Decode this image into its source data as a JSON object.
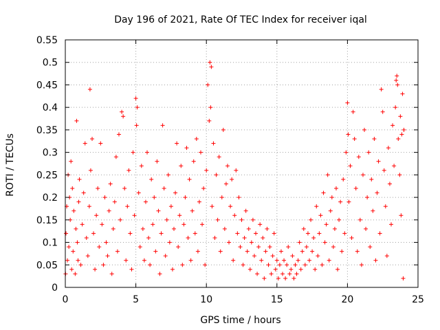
{
  "chart_data": {
    "type": "scatter",
    "title": "Day 196 of 2021, Rate Of TEC Index for receiver iqal",
    "xlabel": "GPS time / hours",
    "ylabel": "ROTI / TECUs",
    "xlim": [
      0,
      25
    ],
    "ylim": [
      0,
      0.55
    ],
    "grid": true,
    "marker": "plus",
    "color": "#ff0000",
    "x_ticks": [
      {
        "value": 0,
        "label": "0"
      },
      {
        "value": 5,
        "label": "5"
      },
      {
        "value": 10,
        "label": "10"
      },
      {
        "value": 15,
        "label": "15"
      },
      {
        "value": 20,
        "label": "20"
      },
      {
        "value": 25,
        "label": "25"
      }
    ],
    "y_ticks": [
      {
        "value": 0,
        "label": "0"
      },
      {
        "value": 0.05,
        "label": "0.05"
      },
      {
        "value": 0.1,
        "label": "0.1"
      },
      {
        "value": 0.15,
        "label": "0.15"
      },
      {
        "value": 0.2,
        "label": "0.2"
      },
      {
        "value": 0.25,
        "label": "0.25"
      },
      {
        "value": 0.3,
        "label": "0.3"
      },
      {
        "value": 0.35,
        "label": "0.35"
      },
      {
        "value": 0.4,
        "label": "0.4"
      },
      {
        "value": 0.45,
        "label": "0.45"
      },
      {
        "value": 0.5,
        "label": "0.5"
      },
      {
        "value": 0.55,
        "label": "0.55"
      }
    ],
    "series": [
      {
        "values": [
          [
            0.02,
            0.03
          ],
          [
            0.05,
            0.12
          ],
          [
            0.1,
            0.18
          ],
          [
            0.15,
            0.06
          ],
          [
            0.2,
            0.25
          ],
          [
            0.25,
            0.09
          ],
          [
            0.3,
            0.2
          ],
          [
            0.35,
            0.15
          ],
          [
            0.4,
            0.28
          ],
          [
            0.45,
            0.04
          ],
          [
            0.5,
            0.22
          ],
          [
            0.55,
            0.08
          ],
          [
            0.6,
            0.17
          ],
          [
            0.7,
            0.03
          ],
          [
            0.75,
            0.13
          ],
          [
            0.8,
            0.37
          ],
          [
            0.85,
            0.1
          ],
          [
            0.9,
            0.06
          ],
          [
            0.95,
            0.19
          ],
          [
            1.0,
            0.24
          ],
          [
            1.1,
            0.05
          ],
          [
            1.2,
            0.14
          ],
          [
            1.3,
            0.21
          ],
          [
            1.4,
            0.32
          ],
          [
            1.5,
            0.11
          ],
          [
            1.6,
            0.07
          ],
          [
            1.7,
            0.18
          ],
          [
            1.75,
            0.44
          ],
          [
            1.8,
            0.26
          ],
          [
            1.9,
            0.33
          ],
          [
            2.0,
            0.12
          ],
          [
            2.1,
            0.04
          ],
          [
            2.2,
            0.16
          ],
          [
            2.3,
            0.22
          ],
          [
            2.4,
            0.09
          ],
          [
            2.5,
            0.32
          ],
          [
            2.6,
            0.14
          ],
          [
            2.7,
            0.05
          ],
          [
            2.8,
            0.2
          ],
          [
            2.9,
            0.1
          ],
          [
            3.0,
            0.07
          ],
          [
            3.1,
            0.17
          ],
          [
            3.2,
            0.23
          ],
          [
            3.3,
            0.03
          ],
          [
            3.4,
            0.13
          ],
          [
            3.5,
            0.19
          ],
          [
            3.6,
            0.29
          ],
          [
            3.7,
            0.08
          ],
          [
            3.8,
            0.34
          ],
          [
            3.9,
            0.15
          ],
          [
            4.0,
            0.39
          ],
          [
            4.1,
            0.38
          ],
          [
            4.2,
            0.22
          ],
          [
            4.3,
            0.06
          ],
          [
            4.4,
            0.18
          ],
          [
            4.5,
            0.26
          ],
          [
            4.6,
            0.12
          ],
          [
            4.7,
            0.04
          ],
          [
            4.8,
            0.3
          ],
          [
            4.9,
            0.16
          ],
          [
            5.0,
            0.42
          ],
          [
            5.05,
            0.36
          ],
          [
            5.1,
            0.4
          ],
          [
            5.2,
            0.21
          ],
          [
            5.3,
            0.09
          ],
          [
            5.4,
            0.27
          ],
          [
            5.5,
            0.13
          ],
          [
            5.6,
            0.06
          ],
          [
            5.7,
            0.19
          ],
          [
            5.8,
            0.3
          ],
          [
            5.9,
            0.11
          ],
          [
            6.0,
            0.05
          ],
          [
            6.1,
            0.24
          ],
          [
            6.2,
            0.14
          ],
          [
            6.3,
            0.2
          ],
          [
            6.4,
            0.08
          ],
          [
            6.5,
            0.28
          ],
          [
            6.6,
            0.17
          ],
          [
            6.7,
            0.03
          ],
          [
            6.8,
            0.12
          ],
          [
            6.9,
            0.36
          ],
          [
            7.0,
            0.22
          ],
          [
            7.1,
            0.07
          ],
          [
            7.2,
            0.15
          ],
          [
            7.3,
            0.25
          ],
          [
            7.4,
            0.1
          ],
          [
            7.5,
            0.18
          ],
          [
            7.6,
            0.04
          ],
          [
            7.7,
            0.13
          ],
          [
            7.8,
            0.21
          ],
          [
            7.9,
            0.32
          ],
          [
            8.0,
            0.09
          ],
          [
            8.1,
            0.16
          ],
          [
            8.2,
            0.27
          ],
          [
            8.3,
            0.05
          ],
          [
            8.4,
            0.14
          ],
          [
            8.5,
            0.2
          ],
          [
            8.6,
            0.31
          ],
          [
            8.7,
            0.11
          ],
          [
            8.8,
            0.24
          ],
          [
            8.9,
            0.06
          ],
          [
            9.0,
            0.17
          ],
          [
            9.1,
            0.28
          ],
          [
            9.2,
            0.12
          ],
          [
            9.3,
            0.33
          ],
          [
            9.4,
            0.08
          ],
          [
            9.5,
            0.19
          ],
          [
            9.6,
            0.3
          ],
          [
            9.7,
            0.14
          ],
          [
            9.8,
            0.22
          ],
          [
            9.9,
            0.05
          ],
          [
            10.0,
            0.26
          ],
          [
            10.1,
            0.45
          ],
          [
            10.2,
            0.37
          ],
          [
            10.25,
            0.5
          ],
          [
            10.3,
            0.4
          ],
          [
            10.35,
            0.49
          ],
          [
            10.4,
            0.18
          ],
          [
            10.5,
            0.32
          ],
          [
            10.6,
            0.11
          ],
          [
            10.7,
            0.25
          ],
          [
            10.8,
            0.15
          ],
          [
            10.9,
            0.29
          ],
          [
            11.0,
            0.08
          ],
          [
            11.1,
            0.2
          ],
          [
            11.2,
            0.35
          ],
          [
            11.3,
            0.13
          ],
          [
            11.4,
            0.23
          ],
          [
            11.5,
            0.27
          ],
          [
            11.6,
            0.1
          ],
          [
            11.7,
            0.18
          ],
          [
            11.8,
            0.24
          ],
          [
            11.9,
            0.06
          ],
          [
            12.0,
            0.16
          ],
          [
            12.1,
            0.26
          ],
          [
            12.2,
            0.12
          ],
          [
            12.3,
            0.2
          ],
          [
            12.4,
            0.09
          ],
          [
            12.5,
            0.15
          ],
          [
            12.6,
            0.05
          ],
          [
            12.7,
            0.11
          ],
          [
            12.8,
            0.17
          ],
          [
            12.9,
            0.08
          ],
          [
            13.0,
            0.13
          ],
          [
            13.1,
            0.04
          ],
          [
            13.2,
            0.1
          ],
          [
            13.3,
            0.15
          ],
          [
            13.4,
            0.07
          ],
          [
            13.5,
            0.12
          ],
          [
            13.6,
            0.03
          ],
          [
            13.7,
            0.09
          ],
          [
            13.8,
            0.14
          ],
          [
            13.9,
            0.06
          ],
          [
            14.0,
            0.11
          ],
          [
            14.1,
            0.02
          ],
          [
            14.2,
            0.08
          ],
          [
            14.3,
            0.13
          ],
          [
            14.4,
            0.05
          ],
          [
            14.5,
            0.09
          ],
          [
            14.6,
            0.03
          ],
          [
            14.7,
            0.07
          ],
          [
            14.8,
            0.12
          ],
          [
            14.9,
            0.04
          ],
          [
            15.0,
            0.06
          ],
          [
            15.1,
            0.02
          ],
          [
            15.2,
            0.05
          ],
          [
            15.3,
            0.08
          ],
          [
            15.4,
            0.03
          ],
          [
            15.5,
            0.06
          ],
          [
            15.6,
            0.02
          ],
          [
            15.7,
            0.05
          ],
          [
            15.8,
            0.09
          ],
          [
            15.9,
            0.03
          ],
          [
            16.0,
            0.04
          ],
          [
            16.1,
            0.07
          ],
          [
            16.2,
            0.02
          ],
          [
            16.3,
            0.05
          ],
          [
            16.4,
            0.03
          ],
          [
            16.5,
            0.06
          ],
          [
            16.6,
            0.1
          ],
          [
            16.7,
            0.04
          ],
          [
            16.8,
            0.08
          ],
          [
            16.9,
            0.13
          ],
          [
            17.0,
            0.05
          ],
          [
            17.1,
            0.09
          ],
          [
            17.2,
            0.12
          ],
          [
            17.3,
            0.06
          ],
          [
            17.4,
            0.15
          ],
          [
            17.5,
            0.08
          ],
          [
            17.6,
            0.11
          ],
          [
            17.7,
            0.04
          ],
          [
            17.8,
            0.18
          ],
          [
            17.9,
            0.07
          ],
          [
            18.0,
            0.12
          ],
          [
            18.1,
            0.16
          ],
          [
            18.2,
            0.05
          ],
          [
            18.3,
            0.21
          ],
          [
            18.4,
            0.1
          ],
          [
            18.5,
            0.14
          ],
          [
            18.6,
            0.25
          ],
          [
            18.7,
            0.06
          ],
          [
            18.8,
            0.17
          ],
          [
            18.9,
            0.2
          ],
          [
            19.0,
            0.09
          ],
          [
            19.1,
            0.13
          ],
          [
            19.2,
            0.22
          ],
          [
            19.3,
            0.04
          ],
          [
            19.4,
            0.15
          ],
          [
            19.5,
            0.19
          ],
          [
            19.6,
            0.08
          ],
          [
            19.7,
            0.24
          ],
          [
            19.8,
            0.12
          ],
          [
            19.9,
            0.3
          ],
          [
            20.0,
            0.41
          ],
          [
            20.05,
            0.34
          ],
          [
            20.1,
            0.19
          ],
          [
            20.2,
            0.27
          ],
          [
            20.3,
            0.11
          ],
          [
            20.4,
            0.39
          ],
          [
            20.5,
            0.33
          ],
          [
            20.6,
            0.22
          ],
          [
            20.7,
            0.08
          ],
          [
            20.8,
            0.29
          ],
          [
            20.9,
            0.15
          ],
          [
            21.0,
            0.05
          ],
          [
            21.1,
            0.25
          ],
          [
            21.2,
            0.35
          ],
          [
            21.3,
            0.13
          ],
          [
            21.4,
            0.2
          ],
          [
            21.5,
            0.3
          ],
          [
            21.6,
            0.09
          ],
          [
            21.7,
            0.24
          ],
          [
            21.8,
            0.17
          ],
          [
            21.9,
            0.33
          ],
          [
            22.0,
            0.06
          ],
          [
            22.1,
            0.21
          ],
          [
            22.2,
            0.28
          ],
          [
            22.3,
            0.12
          ],
          [
            22.4,
            0.44
          ],
          [
            22.5,
            0.39
          ],
          [
            22.6,
            0.26
          ],
          [
            22.7,
            0.18
          ],
          [
            22.8,
            0.07
          ],
          [
            22.9,
            0.31
          ],
          [
            23.0,
            0.23
          ],
          [
            23.1,
            0.14
          ],
          [
            23.2,
            0.36
          ],
          [
            23.3,
            0.27
          ],
          [
            23.4,
            0.4
          ],
          [
            23.45,
            0.46
          ],
          [
            23.5,
            0.47
          ],
          [
            23.55,
            0.45
          ],
          [
            23.6,
            0.33
          ],
          [
            23.7,
            0.25
          ],
          [
            23.75,
            0.38
          ],
          [
            23.8,
            0.16
          ],
          [
            23.85,
            0.34
          ],
          [
            23.9,
            0.43
          ],
          [
            23.95,
            0.02
          ],
          [
            24.0,
            0.35
          ]
        ]
      }
    ]
  }
}
